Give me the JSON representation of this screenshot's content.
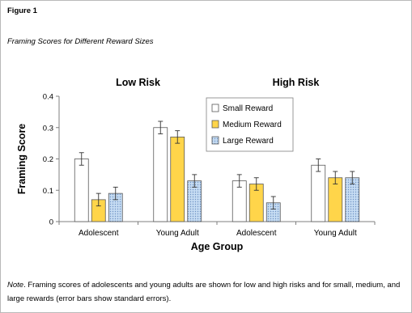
{
  "figure": {
    "label": "Figure 1",
    "subtitle": "Framing Scores for Different Reward Sizes",
    "note_lead": "Note",
    "note_text": ". Framing scores of adolescents and young adults are shown for low and high risks and for small, medium, and large rewards (error bars show standard errors)."
  },
  "chart_data": {
    "type": "bar",
    "panel_titles": [
      "Low Risk",
      "High Risk"
    ],
    "categories": [
      "Adolescent",
      "Young Adult",
      "Adolescent",
      "Young Adult"
    ],
    "series": [
      {
        "name": "Small Reward",
        "values": [
          0.2,
          0.3,
          0.13,
          0.18
        ],
        "errors": [
          0.02,
          0.02,
          0.02,
          0.02
        ],
        "color": "#ffffff",
        "pattern": "solid"
      },
      {
        "name": "Medium Reward",
        "values": [
          0.07,
          0.27,
          0.12,
          0.14
        ],
        "errors": [
          0.02,
          0.02,
          0.02,
          0.02
        ],
        "color": "#ffd54a",
        "pattern": "solid"
      },
      {
        "name": "Large Reward",
        "values": [
          0.09,
          0.13,
          0.06,
          0.14
        ],
        "errors": [
          0.02,
          0.02,
          0.02,
          0.02
        ],
        "color": "#bcd4ef",
        "pattern": "dotted"
      }
    ],
    "xlabel": "Age Group",
    "ylabel": "Framing Score",
    "ylim": [
      0,
      0.4
    ],
    "yticks": [
      "0",
      "0.1",
      "0.2",
      "0.3",
      "0.4"
    ],
    "grid": false,
    "legend_position": "top-right"
  }
}
